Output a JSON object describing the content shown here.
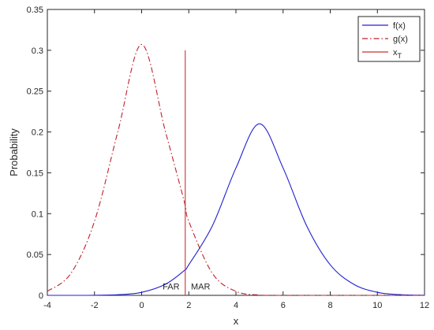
{
  "chart_data": {
    "type": "line",
    "title": "",
    "xlabel": "x",
    "ylabel": "Probability",
    "xlim": [
      -4,
      12
    ],
    "ylim": [
      0,
      0.35
    ],
    "xticks": [
      -4,
      -2,
      0,
      2,
      4,
      6,
      8,
      10,
      12
    ],
    "yticks": [
      0,
      0.05,
      0.1,
      0.15,
      0.2,
      0.25,
      0.3,
      0.35
    ],
    "xtick_labels": [
      "-4",
      "-2",
      "0",
      "2",
      "4",
      "6",
      "8",
      "10",
      "12"
    ],
    "ytick_labels": [
      "0",
      "0.05",
      "0.1",
      "0.15",
      "0.2",
      "0.25",
      "0.3",
      "0.35"
    ],
    "grid": false,
    "legend_position": "top-right",
    "series": [
      {
        "name": "f(x)",
        "style": "solid",
        "color": "#2020d0",
        "x": [
          -4,
          -3,
          -2,
          -1,
          0,
          1,
          1.8,
          2,
          3,
          4,
          5,
          6,
          7,
          8,
          9,
          10,
          11,
          12
        ],
        "y": [
          0.0,
          0.0,
          0.0001,
          0.0008,
          0.0037,
          0.0135,
          0.0302,
          0.0374,
          0.0851,
          0.1559,
          0.21,
          0.1559,
          0.0851,
          0.0374,
          0.0135,
          0.0037,
          0.0008,
          0.0001
        ]
      },
      {
        "name": "g(x)",
        "style": "dashdot",
        "color": "#c0202a",
        "x": [
          -4,
          -3,
          -2,
          -1,
          0,
          1,
          1.8,
          2,
          3,
          4,
          5,
          6,
          7,
          8,
          9,
          10,
          11,
          12
        ],
        "y": [
          0.0049,
          0.0269,
          0.0906,
          0.2015,
          0.3072,
          0.2015,
          0.1157,
          0.0906,
          0.0269,
          0.0049,
          0.0004,
          0.0,
          0.0,
          0.0,
          0.0,
          0.0,
          0.0,
          0.0
        ]
      },
      {
        "name": "x",
        "name_subscript": "T",
        "style": "solid",
        "color": "#c83232",
        "x": [
          1.85,
          1.85
        ],
        "y": [
          0,
          0.3
        ]
      }
    ],
    "annotations": [
      {
        "text": "FAR",
        "x": 1.25,
        "y": 0.007
      },
      {
        "text": "MAR",
        "x": 2.5,
        "y": 0.007
      }
    ]
  }
}
